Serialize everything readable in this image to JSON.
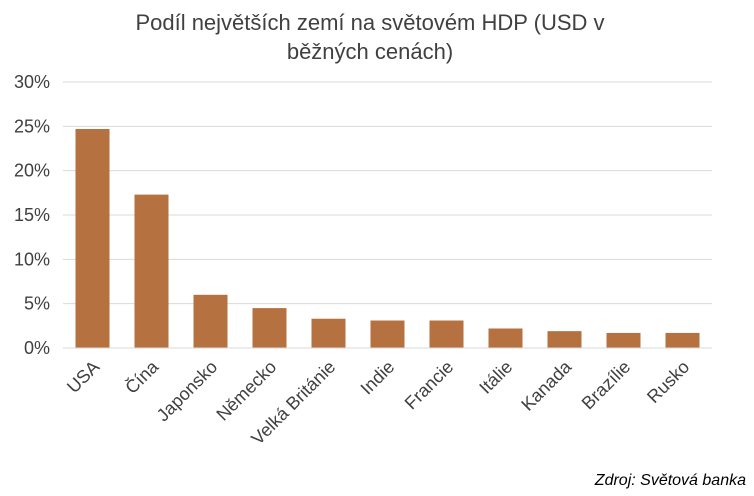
{
  "chart_data": {
    "type": "bar",
    "title": [
      "Podíl největších zemí na světovém HDP (USD v",
      "běžných cenách)"
    ],
    "categories": [
      "USA",
      "Čína",
      "Japonsko",
      "Německo",
      "Velká Británie",
      "Indie",
      "Francie",
      "Itálie",
      "Kanada",
      "Brazílie",
      "Rusko"
    ],
    "values": [
      24.7,
      17.3,
      6.0,
      4.5,
      3.3,
      3.1,
      3.1,
      2.2,
      1.9,
      1.7,
      1.7
    ],
    "ylim": [
      0,
      30
    ],
    "yticks": [
      "0%",
      "5%",
      "10%",
      "15%",
      "20%",
      "25%",
      "30%"
    ],
    "xlabel": "",
    "ylabel": "",
    "grid": true,
    "bar_color": "#B5713F",
    "grid_color": "#D9D9D9"
  },
  "source": "Zdroj: Světová banka"
}
